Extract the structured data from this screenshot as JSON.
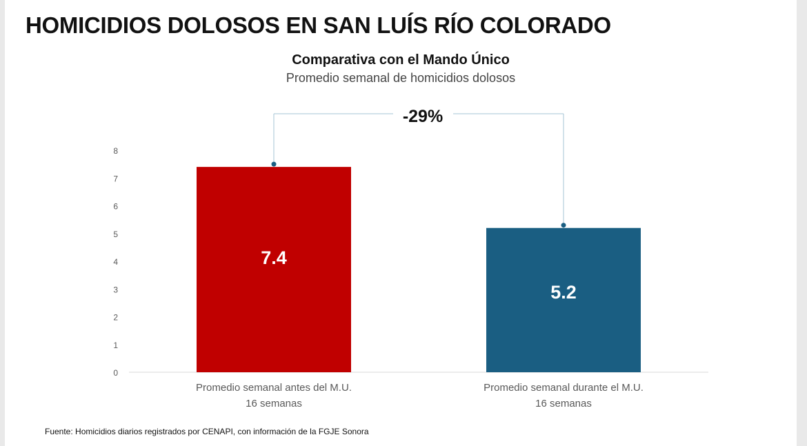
{
  "header": {
    "title": "HOMICIDIOS DOLOSOS EN SAN LUÍS RÍO COLORADO"
  },
  "chart_data": {
    "type": "bar",
    "title": "Comparativa con el Mando Único",
    "subtitle": "Promedio semanal de homicidios dolosos",
    "categories": [
      [
        "Promedio semanal antes del M.U.",
        "16 semanas"
      ],
      [
        "Promedio semanal durante el M.U.",
        "16 semanas"
      ]
    ],
    "values": [
      7.4,
      5.2
    ],
    "data_labels": [
      "7.4",
      "5.2"
    ],
    "colors": [
      "#c00000",
      "#1a5e82"
    ],
    "ylim": [
      0,
      8
    ],
    "yticks": [
      0,
      1,
      2,
      3,
      4,
      5,
      6,
      7,
      8
    ],
    "grid": false,
    "xlabel": "",
    "ylabel": "",
    "annotation": "-29%"
  },
  "footer": {
    "source": "Fuente: Homicidios diarios registrados por CENAPI, con información de la FGJE Sonora"
  }
}
